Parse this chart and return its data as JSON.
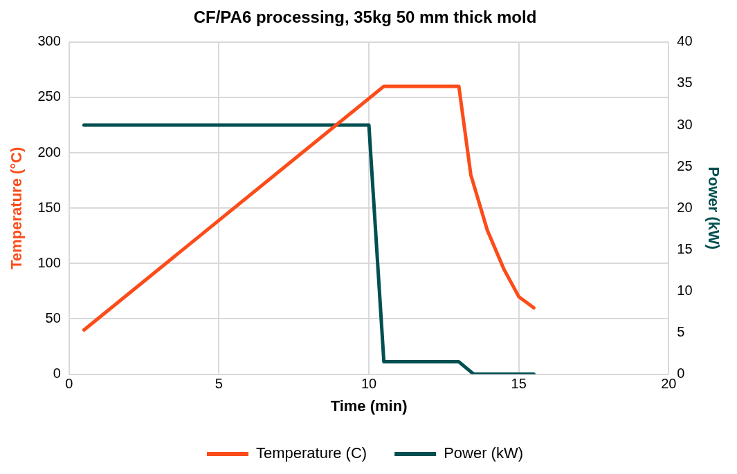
{
  "chart_data": {
    "type": "line",
    "title": "CF/PA6 processing, 35kg 50 mm thick mold",
    "xlabel": "Time (min)",
    "ylabel": "Temperature (°C)",
    "y2label": "Power (kW)",
    "xlim": [
      0,
      20
    ],
    "xticks": [
      0,
      5,
      10,
      15,
      20
    ],
    "ylim": [
      0,
      300
    ],
    "yticks": [
      0,
      50,
      100,
      150,
      200,
      250,
      300
    ],
    "y2lim": [
      0,
      40
    ],
    "y2ticks": [
      0,
      5,
      10,
      15,
      20,
      25,
      30,
      35,
      40
    ],
    "grid": true,
    "legend": "bottom",
    "marker": "none",
    "line_style": "solid",
    "series": [
      {
        "name": "Temperature (C)",
        "color": "#fc4c1a",
        "x": [
          0.5,
          10.5,
          13,
          13.4,
          13.95,
          14.5,
          15,
          15.5
        ],
        "values": [
          40,
          260,
          260,
          180,
          130,
          95,
          70,
          60
        ]
      },
      {
        "name": "Power (kW)",
        "color": "#004f51",
        "axis": "y2",
        "x": [
          0.5,
          10,
          10.5,
          13,
          13.5,
          15.5
        ],
        "values": [
          30,
          30,
          1.5,
          1.5,
          0,
          0
        ]
      }
    ]
  }
}
